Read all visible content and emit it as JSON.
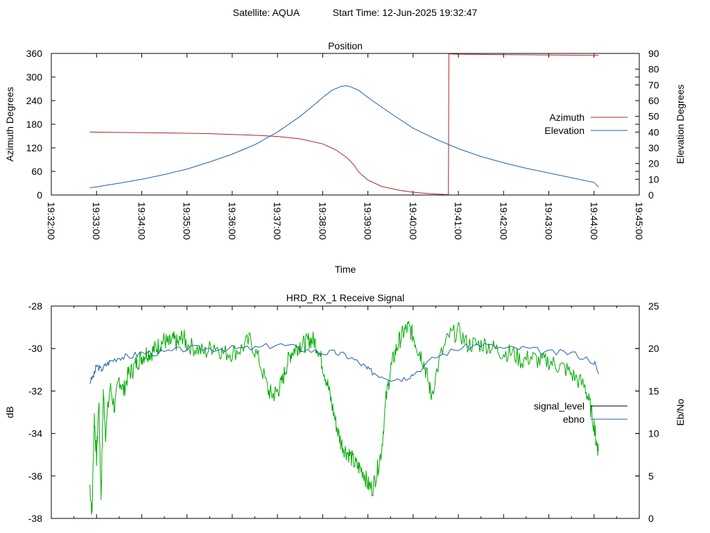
{
  "header": {
    "satellite": "Satellite: AQUA",
    "start_time": "Start Time: 12-Jun-2025 19:32:47"
  },
  "chart_data": [
    {
      "type": "line",
      "title": "Position",
      "xlabel": "Time",
      "ylabel": "Azimuth Degrees",
      "y2label": "Elevation Degrees",
      "x_ticks": [
        "19:32:00",
        "19:33:00",
        "19:34:00",
        "19:35:00",
        "19:36:00",
        "19:37:00",
        "19:38:00",
        "19:39:00",
        "19:40:00",
        "19:41:00",
        "19:42:00",
        "19:43:00",
        "19:44:00",
        "19:45:00"
      ],
      "xlim_minutes": [
        0,
        13
      ],
      "ylim": [
        0,
        360
      ],
      "yticks": [
        "0",
        "60",
        "120",
        "180",
        "240",
        "300",
        "360"
      ],
      "y2lim": [
        0,
        90
      ],
      "y2ticks": [
        "0",
        "10",
        "20",
        "30",
        "40",
        "50",
        "60",
        "70",
        "80",
        "90"
      ],
      "legend_position": "right",
      "series": [
        {
          "name": "Azimuth",
          "axis": "y",
          "color": "#b22222",
          "x": [
            0.85,
            1.5,
            2.5,
            3.5,
            4.5,
            5.0,
            5.5,
            6.0,
            6.3,
            6.5,
            6.6,
            6.7,
            6.8,
            7.0,
            7.3,
            7.7,
            8.0,
            8.4,
            8.75,
            8.78,
            8.79,
            9.0,
            10.0,
            11.0,
            12.0,
            12.1
          ],
          "values": [
            160,
            159,
            158,
            156,
            152,
            149,
            143,
            130,
            114,
            98,
            88,
            75,
            58,
            38,
            22,
            12,
            7,
            3,
            1,
            2,
            359,
            358,
            357,
            356,
            355,
            355
          ]
        },
        {
          "name": "Elevation",
          "axis": "y2",
          "color": "#1f5fa8",
          "x": [
            0.85,
            1.5,
            2.0,
            2.5,
            3.0,
            3.5,
            4.0,
            4.5,
            5.0,
            5.5,
            5.8,
            6.0,
            6.2,
            6.4,
            6.5,
            6.6,
            6.8,
            7.0,
            7.5,
            8.0,
            8.5,
            9.0,
            9.5,
            10.0,
            10.5,
            11.0,
            11.5,
            12.0,
            12.1
          ],
          "values": [
            4.5,
            7.5,
            10,
            13,
            16.5,
            21,
            26,
            32,
            40,
            50,
            57,
            62,
            66.5,
            69,
            69.5,
            69,
            66.5,
            62,
            52,
            42.5,
            35.5,
            29.5,
            24.5,
            20.5,
            17,
            14,
            11,
            8,
            5
          ]
        }
      ]
    },
    {
      "type": "line",
      "title": "HRD_RX_1 Receive Signal",
      "xlabel": "",
      "ylabel": "dB",
      "y2label": "Eb/No",
      "ylim": [
        -38,
        -28
      ],
      "yticks": [
        "-38",
        "-36",
        "-34",
        "-32",
        "-30",
        "-28"
      ],
      "y2lim": [
        0,
        25
      ],
      "y2ticks": [
        "0",
        "5",
        "10",
        "15",
        "20",
        "25"
      ],
      "xlim_minutes": [
        0,
        13
      ],
      "legend_position": "right",
      "series": [
        {
          "name": "signal_level",
          "axis": "y",
          "color": "#000000",
          "x": [],
          "values": []
        },
        {
          "name": "ebno",
          "axis": "y2",
          "color": "#00aa00",
          "x": [
            0.85,
            0.9,
            0.95,
            1.0,
            1.05,
            1.1,
            1.15,
            1.2,
            1.3,
            1.4,
            1.5,
            1.6,
            1.7,
            1.8,
            1.9,
            2.0,
            2.1,
            2.2,
            2.3,
            2.4,
            2.5,
            2.6,
            2.7,
            2.8,
            2.9,
            3.0,
            3.2,
            3.4,
            3.6,
            3.8,
            4.0,
            4.2,
            4.4,
            4.6,
            4.8,
            4.9,
            5.0,
            5.1,
            5.2,
            5.3,
            5.4,
            5.5,
            5.6,
            5.7,
            5.8,
            5.9,
            6.0,
            6.1,
            6.2,
            6.3,
            6.4,
            6.5,
            6.6,
            6.7,
            6.8,
            6.9,
            7.0,
            7.1,
            7.2,
            7.3,
            7.4,
            7.5,
            7.6,
            7.7,
            7.8,
            7.9,
            8.0,
            8.1,
            8.2,
            8.3,
            8.4,
            8.6,
            8.8,
            9.0,
            9.2,
            9.4,
            9.6,
            9.8,
            10.0,
            10.2,
            10.4,
            10.6,
            10.8,
            11.0,
            11.2,
            11.4,
            11.6,
            11.8,
            11.9,
            12.0,
            12.05,
            12.1
          ],
          "values": [
            4,
            0.5,
            12,
            7,
            14,
            2.5,
            15,
            10,
            15.5,
            13,
            16.5,
            15,
            17,
            17.5,
            18.5,
            19,
            19.5,
            19.5,
            20,
            20.5,
            21,
            20.5,
            21,
            20.5,
            21.5,
            20.5,
            20,
            19.5,
            20.5,
            19.5,
            19.5,
            20,
            21,
            18.5,
            15,
            14.5,
            15,
            16,
            18,
            19.5,
            20,
            20.5,
            20.5,
            21,
            21,
            20,
            18,
            16,
            13.5,
            11,
            9,
            8,
            7.5,
            6.5,
            6,
            5.5,
            4,
            3.5,
            5.5,
            8,
            14,
            17.5,
            19.5,
            21,
            22,
            22.5,
            21.5,
            20,
            19,
            17,
            14.5,
            19,
            21.5,
            22,
            20.5,
            20.5,
            20.5,
            20,
            19.5,
            19.5,
            18.5,
            19,
            18.5,
            18.5,
            18,
            17.5,
            16.5,
            15.5,
            13.5,
            11,
            9,
            8
          ]
        },
        {
          "name": "ebno",
          "axis": "y2",
          "color": "#1f5fa8",
          "x": [
            0.85,
            0.95,
            1.0,
            1.1,
            1.2,
            1.3,
            1.5,
            1.7,
            2.0,
            2.5,
            3.0,
            3.5,
            4.0,
            4.5,
            5.0,
            5.5,
            6.0,
            6.3,
            6.6,
            6.9,
            7.0,
            7.2,
            7.5,
            7.8,
            8.0,
            8.5,
            9.0,
            9.5,
            10.0,
            10.5,
            11.0,
            11.5,
            12.0,
            12.1
          ],
          "values": [
            16,
            17,
            18,
            17.5,
            18,
            18.5,
            19,
            19,
            19.5,
            19.5,
            20,
            20,
            20,
            20,
            20.5,
            20,
            19.5,
            19.5,
            19,
            18,
            17.5,
            17,
            16.5,
            16.5,
            17,
            19,
            20,
            20.5,
            20,
            20,
            19.5,
            19.5,
            18.5,
            17
          ]
        }
      ]
    }
  ]
}
